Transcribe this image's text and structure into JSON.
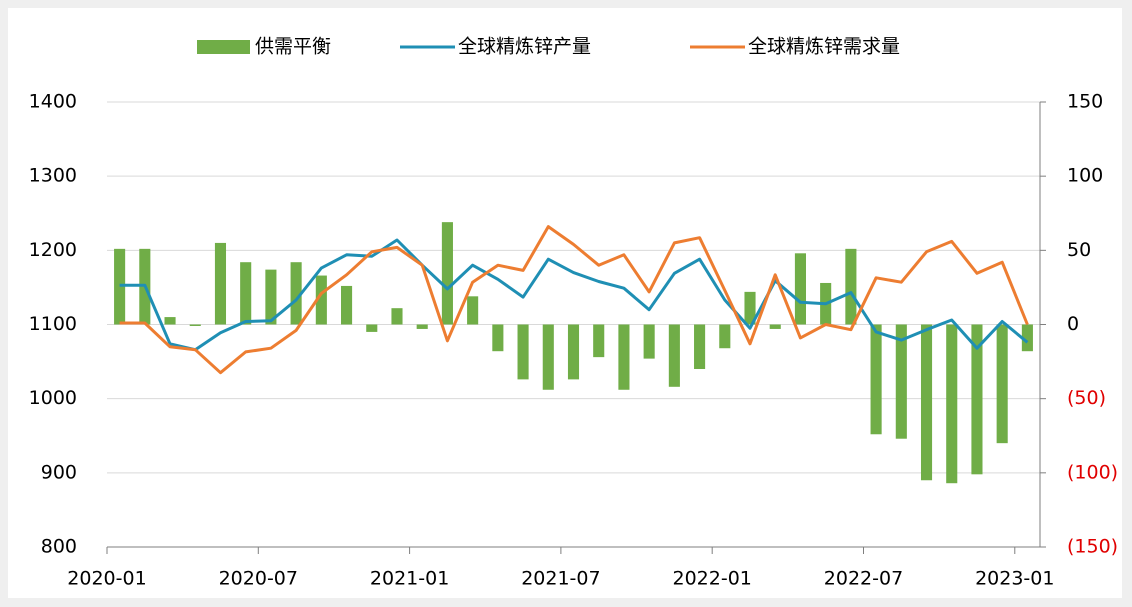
{
  "chart_data": {
    "type": "bar_line",
    "categories": [
      "2020-01",
      null,
      null,
      null,
      null,
      null,
      "2020-07",
      null,
      null,
      null,
      null,
      null,
      "2021-01",
      null,
      null,
      null,
      null,
      null,
      "2021-07",
      null,
      null,
      null,
      null,
      null,
      "2022-01",
      null,
      null,
      null,
      null,
      null,
      "2022-07",
      null,
      null,
      null,
      null,
      null,
      "2023-01"
    ],
    "series": [
      {
        "name": "供需平衡",
        "kind": "bar",
        "axis": "y2",
        "color": "#70ad47",
        "values": [
          51,
          51,
          5,
          -1,
          55,
          42,
          37,
          42,
          33,
          26,
          -5,
          11,
          -3,
          69,
          19,
          -18,
          -37,
          -44,
          -37,
          -22,
          -44,
          -23,
          -42,
          -30,
          -16,
          22,
          -3,
          48,
          28,
          51,
          -74,
          -77,
          -105,
          -107,
          -101,
          -80,
          -18
        ]
      },
      {
        "name": "全球精炼锌产量",
        "kind": "line",
        "color": "#1f8fb4",
        "values": [
          1153,
          1153,
          1074,
          1066,
          1089,
          1104,
          1105,
          1133,
          1176,
          1194,
          1192,
          1214,
          1180,
          1148,
          1180,
          1161,
          1137,
          1188,
          1170,
          1158,
          1149,
          1120,
          1169,
          1188,
          1133,
          1095,
          1159,
          1130,
          1128,
          1143,
          1090,
          1079,
          1093,
          1106,
          1068,
          1104,
          1076
        ]
      },
      {
        "name": "全球精炼锌需求量",
        "kind": "line",
        "color": "#ed7d31",
        "values": [
          1102,
          1102,
          1070,
          1066,
          1035,
          1063,
          1068,
          1092,
          1142,
          1167,
          1198,
          1204,
          1180,
          1078,
          1157,
          1180,
          1173,
          1232,
          1208,
          1180,
          1194,
          1144,
          1210,
          1217,
          1146,
          1074,
          1167,
          1082,
          1100,
          1093,
          1163,
          1157,
          1198,
          1212,
          1169,
          1184,
          1100
        ]
      }
    ],
    "ylim": [
      800,
      1400
    ],
    "yticks": [
      800,
      900,
      1000,
      1100,
      1200,
      1300,
      1400
    ],
    "y2lim": [
      -150,
      150
    ],
    "y2ticks": [
      {
        "value": -150,
        "label": "(150)"
      },
      {
        "value": -100,
        "label": "(100)"
      },
      {
        "value": -50,
        "label": "(50)"
      },
      0,
      50,
      100,
      150
    ],
    "grid": true,
    "legend": "top"
  }
}
